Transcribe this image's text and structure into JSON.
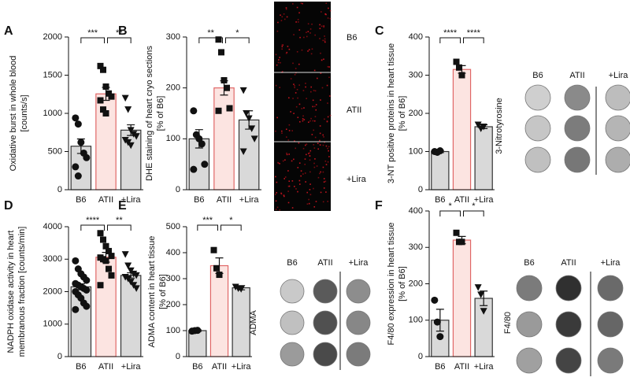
{
  "chart_data": [
    {
      "type": "bar",
      "panel": "A",
      "ylabel": [
        "Oxidative burst in whole blood",
        "[counts/s]"
      ],
      "categories": [
        "B6",
        "ATII",
        "+Lira"
      ],
      "values": [
        570,
        1255,
        780
      ],
      "errors": [
        95,
        85,
        70
      ],
      "points": [
        [
          940,
          860,
          620,
          480,
          420,
          300,
          180
        ],
        [
          1620,
          1570,
          1350,
          1260,
          1220,
          1170,
          1050,
          1000
        ],
        [
          1200,
          1050,
          780,
          730,
          700,
          650,
          620,
          580
        ]
      ],
      "ylim": [
        0,
        2000
      ],
      "yticks": [
        0,
        500,
        1000,
        1500,
        2000
      ],
      "significance": [
        "***",
        "**"
      ],
      "bar_colors": [
        "#d9d9d9",
        "#fce4e1",
        "#d9d9d9"
      ],
      "edge_colors": [
        "#333333",
        "#e06666",
        "#333333"
      ],
      "markers": [
        "circle",
        "square",
        "triangle"
      ]
    },
    {
      "type": "bar",
      "panel": "B",
      "ylabel": [
        "DHE staining of heart cryo sections",
        "[% of B6]"
      ],
      "categories": [
        "B6",
        "ATII",
        "+Lira"
      ],
      "values": [
        100,
        200,
        137
      ],
      "errors": [
        18,
        14,
        18
      ],
      "points": [
        [
          155,
          108,
          100,
          90,
          50,
          40
        ],
        [
          295,
          270,
          215,
          200,
          160,
          155
        ],
        [
          195,
          150,
          140,
          120,
          100,
          75
        ]
      ],
      "ylim": [
        0,
        300
      ],
      "yticks": [
        0,
        100,
        200,
        300
      ],
      "significance": [
        "**",
        "*"
      ],
      "bar_colors": [
        "#d9d9d9",
        "#fce4e1",
        "#d9d9d9"
      ],
      "edge_colors": [
        "#333333",
        "#e06666",
        "#333333"
      ],
      "markers": [
        "circle",
        "square",
        "triangle"
      ]
    },
    {
      "type": "bar",
      "panel": "C",
      "ylabel": [
        "3-NT positive proteins in heart tissue",
        "[% of B6]"
      ],
      "categories": [
        "B6",
        "ATII",
        "+Lira"
      ],
      "values": [
        100,
        315,
        165
      ],
      "errors": [
        3,
        10,
        5
      ],
      "points": [
        [
          100,
          98,
          102
        ],
        [
          335,
          320,
          300
        ],
        [
          170,
          160,
          165
        ]
      ],
      "ylim": [
        0,
        400
      ],
      "yticks": [
        0,
        100,
        200,
        300,
        400
      ],
      "significance": [
        "****",
        "****"
      ],
      "bar_colors": [
        "#d9d9d9",
        "#fce4e1",
        "#d9d9d9"
      ],
      "edge_colors": [
        "#333333",
        "#e06666",
        "#333333"
      ],
      "markers": [
        "circle",
        "square",
        "triangle"
      ]
    },
    {
      "type": "bar",
      "panel": "D",
      "ylabel": [
        "NADPH oxidase activity in heart",
        "membranous fraction [counts/min]"
      ],
      "categories": [
        "B6",
        "ATII",
        "+Lira"
      ],
      "values": [
        2150,
        3060,
        2500
      ],
      "errors": [
        90,
        150,
        80
      ],
      "points": [
        [
          2950,
          2700,
          2550,
          2450,
          2350,
          2250,
          2200,
          2150,
          2100,
          2050,
          2000,
          1900,
          1800,
          1650,
          1550,
          1450
        ],
        [
          3800,
          3600,
          3400,
          3250,
          3100,
          3050,
          3000,
          2950,
          2700,
          2500,
          2200
        ],
        [
          3150,
          2800,
          2650,
          2550,
          2500,
          2450,
          2400,
          2300,
          2200,
          2100
        ]
      ],
      "ylim": [
        0,
        4000
      ],
      "yticks": [
        0,
        1000,
        2000,
        3000,
        4000
      ],
      "significance": [
        "****",
        "**"
      ],
      "bar_colors": [
        "#d9d9d9",
        "#fce4e1",
        "#d9d9d9"
      ],
      "edge_colors": [
        "#333333",
        "#e06666",
        "#333333"
      ],
      "markers": [
        "circle",
        "square",
        "triangle"
      ]
    },
    {
      "type": "bar",
      "panel": "E",
      "ylabel": [
        "ADMA content in heart tissue",
        "[% of B6]"
      ],
      "categories": [
        "B6",
        "ATII",
        "+Lira"
      ],
      "values": [
        100,
        350,
        265
      ],
      "errors": [
        3,
        30,
        8
      ],
      "points": [
        [
          98,
          100,
          101
        ],
        [
          410,
          340,
          315
        ],
        [
          268,
          262,
          260
        ]
      ],
      "ylim": [
        0,
        500
      ],
      "yticks": [
        0,
        100,
        200,
        300,
        400,
        500
      ],
      "significance": [
        "***",
        "*"
      ],
      "bar_colors": [
        "#d9d9d9",
        "#fce4e1",
        "#d9d9d9"
      ],
      "edge_colors": [
        "#333333",
        "#e06666",
        "#333333"
      ],
      "markers": [
        "circle",
        "square",
        "triangle"
      ]
    },
    {
      "type": "bar",
      "panel": "F",
      "ylabel": [
        "F4/80 expression in heart tissue",
        "[% of B6]"
      ],
      "categories": [
        "B6",
        "ATII",
        "+Lira"
      ],
      "values": [
        100,
        320,
        160
      ],
      "errors": [
        30,
        10,
        20
      ],
      "points": [
        [
          155,
          95,
          55
        ],
        [
          340,
          315,
          315
        ],
        [
          190,
          170,
          125
        ]
      ],
      "ylim": [
        0,
        400
      ],
      "yticks": [
        0,
        100,
        200,
        300,
        400
      ],
      "significance": [
        "*",
        "*"
      ],
      "bar_colors": [
        "#d9d9d9",
        "#fce4e1",
        "#d9d9d9"
      ],
      "edge_colors": [
        "#333333",
        "#e06666",
        "#333333"
      ],
      "markers": [
        "circle",
        "square",
        "triangle"
      ]
    }
  ],
  "images": {
    "dhe": {
      "labels": [
        "B6",
        "ATII",
        "+Lira"
      ]
    },
    "blots": [
      {
        "columns": [
          "B6",
          "ATII",
          "+Lira"
        ],
        "label": "3-Nitrotyrosine"
      },
      {
        "columns": [
          "B6",
          "ATII",
          "+Lira"
        ],
        "label": "ADMA"
      },
      {
        "columns": [
          "B6",
          "ATII",
          "+Lira"
        ],
        "label": "F4/80"
      }
    ]
  }
}
